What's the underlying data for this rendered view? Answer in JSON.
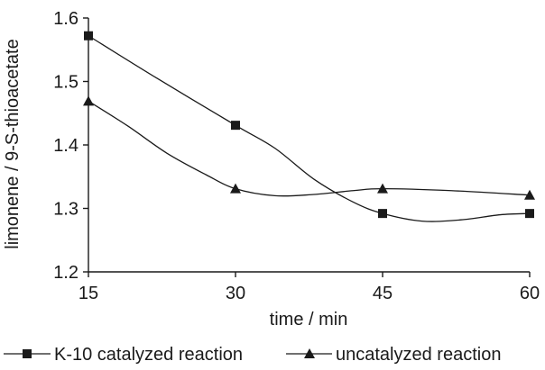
{
  "chart_data": {
    "type": "line",
    "title": "",
    "xlabel": "time / min",
    "ylabel": "limonene / 9-S-thioacetate",
    "x": [
      15,
      30,
      45,
      60
    ],
    "x_ticks": [
      "15",
      "30",
      "45",
      "60"
    ],
    "y_ticks": [
      "1.2",
      "1.3",
      "1.4",
      "1.5",
      "1.6"
    ],
    "xlim": [
      15,
      60
    ],
    "ylim": [
      1.2,
      1.6
    ],
    "grid": false,
    "legend_position": "bottom",
    "series": [
      {
        "name": "K-10 catalyzed reaction",
        "marker": "square",
        "values": [
          1.572,
          1.431,
          1.292,
          1.292
        ],
        "curve_path": [
          [
            15,
            1.572
          ],
          [
            22,
            1.505
          ],
          [
            30,
            1.431
          ],
          [
            34,
            1.395
          ],
          [
            38,
            1.346
          ],
          [
            42,
            1.31
          ],
          [
            45,
            1.292
          ],
          [
            49,
            1.28
          ],
          [
            53,
            1.282
          ],
          [
            57,
            1.29
          ],
          [
            60,
            1.292
          ]
        ]
      },
      {
        "name": "uncatalyzed reaction",
        "marker": "triangle",
        "values": [
          1.469,
          1.331,
          1.331,
          1.321
        ],
        "curve_path": [
          [
            15,
            1.469
          ],
          [
            19,
            1.43
          ],
          [
            23,
            1.387
          ],
          [
            27,
            1.353
          ],
          [
            30,
            1.331
          ],
          [
            34,
            1.32
          ],
          [
            38,
            1.322
          ],
          [
            42,
            1.328
          ],
          [
            45,
            1.331
          ],
          [
            52,
            1.328
          ],
          [
            60,
            1.321
          ]
        ]
      }
    ]
  }
}
